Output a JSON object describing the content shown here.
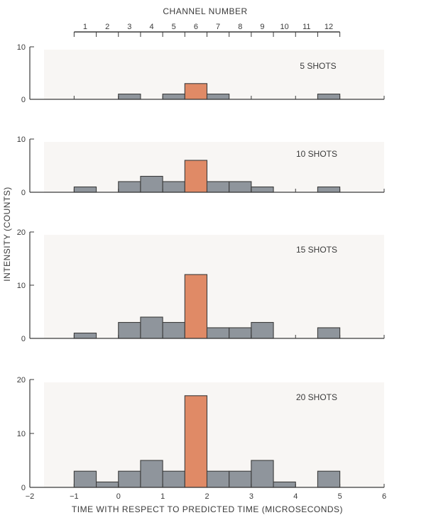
{
  "colors": {
    "bar": "#8f959c",
    "bar_edge": "#3c3c3c",
    "highlight": "#e08a66",
    "highlight_edge": "#3c3c3c",
    "axis": "#3a3a3a",
    "panel_background": "#f8f6f4"
  },
  "chart_data": {
    "type": "bar",
    "title": "",
    "top_axis": {
      "title": "CHANNEL NUMBER",
      "labels": [
        "1",
        "2",
        "3",
        "4",
        "5",
        "6",
        "7",
        "8",
        "9",
        "10",
        "11",
        "12"
      ]
    },
    "xlabel": "TIME WITH RESPECT TO PREDICTED TIME (MICROSECONDS)",
    "ylabel": "INTENSITY (COUNTS)",
    "xlim": [
      -2,
      6
    ],
    "x_ticks": [
      "−2",
      "−1",
      "0",
      "1",
      "2",
      "3",
      "4",
      "5",
      "6"
    ],
    "bin_width_microseconds": 0.5,
    "bin_left_edges": [
      -1.0,
      -0.5,
      0.0,
      0.5,
      1.0,
      1.5,
      2.0,
      2.5,
      3.0,
      3.5,
      4.0,
      4.5
    ],
    "highlight_channel": "6",
    "panels": [
      {
        "label": "5 SHOTS",
        "ylim": [
          0,
          10
        ],
        "y_ticks": [
          "0",
          "10"
        ],
        "values": [
          0,
          0,
          1,
          0,
          1,
          3,
          1,
          0,
          0,
          0,
          0,
          1
        ]
      },
      {
        "label": "10 SHOTS",
        "ylim": [
          0,
          10
        ],
        "y_ticks": [
          "0",
          "10"
        ],
        "values": [
          1,
          0,
          2,
          3,
          2,
          6,
          2,
          2,
          1,
          0,
          0,
          1
        ]
      },
      {
        "label": "15 SHOTS",
        "ylim": [
          0,
          20
        ],
        "y_ticks": [
          "0",
          "10",
          "20"
        ],
        "values": [
          1,
          0,
          3,
          4,
          3,
          12,
          2,
          2,
          3,
          0,
          0,
          2
        ]
      },
      {
        "label": "20 SHOTS",
        "ylim": [
          0,
          20
        ],
        "y_ticks": [
          "0",
          "10",
          "20"
        ],
        "values": [
          3,
          1,
          3,
          5,
          3,
          17,
          3,
          3,
          5,
          1,
          0,
          3
        ]
      }
    ]
  }
}
